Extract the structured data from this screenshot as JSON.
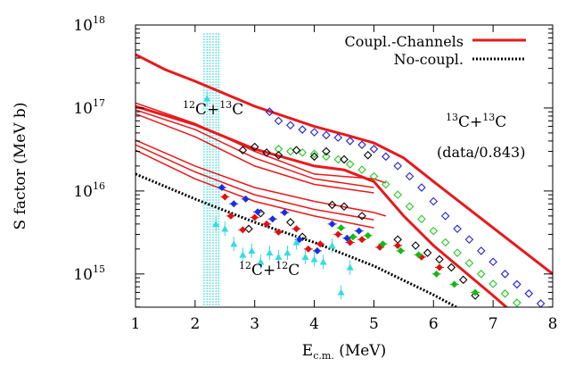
{
  "chart_data": {
    "type": "scatter",
    "title": "",
    "xlabel": {
      "base": "E",
      "sub": "c.m.",
      "unit": " (MeV)"
    },
    "ylabel": "S factor (MeV b)",
    "xlim": [
      1,
      8
    ],
    "ylim_log10": [
      14.6,
      18.0
    ],
    "yscale": "log",
    "xticks": [
      "1",
      "2",
      "3",
      "4",
      "5",
      "6",
      "7",
      "8"
    ],
    "yticks": [
      {
        "exp": 15,
        "base": "10",
        "sup": "15"
      },
      {
        "exp": 16,
        "base": "10",
        "sup": "16"
      },
      {
        "exp": 17,
        "base": "10",
        "sup": "17"
      },
      {
        "exp": 18,
        "base": "10",
        "sup": "18"
      }
    ],
    "legend": [
      {
        "label": "Coupl.-Channels",
        "color": "#e8191c",
        "style": "solid"
      },
      {
        "label": "No-coupl.",
        "color": "#000000",
        "style": "dotted"
      }
    ],
    "annotations": {
      "c12c13": {
        "sup1": "12",
        "mid": "C+",
        "sup2": "13",
        "end": "C"
      },
      "c13c13": {
        "sup1": "13",
        "mid": "C+",
        "sup2": "13",
        "end": "C"
      },
      "scale_note": "(data/0.843)",
      "c12c12": {
        "sup1": "12",
        "mid": "C+",
        "sup2": "12",
        "end": "C"
      }
    },
    "series": [
      {
        "name": "Coupl.-Channels",
        "kind": "line",
        "color": "#e8191c",
        "width": 3,
        "x": [
          1,
          1.5,
          2,
          3,
          4,
          4.5,
          5,
          5.5,
          6,
          7,
          8
        ],
        "y": [
          4.4e+17,
          2.9e+17,
          2.1e+17,
          1.05e+17,
          6e+16,
          4.8e+16,
          3.8e+16,
          2.5e+16,
          1.3e+16,
          3600000000000000.0,
          1000000000000000.0
        ]
      },
      {
        "name": "",
        "kind": "line",
        "color": "#e8191c",
        "width": 3,
        "x": [
          1,
          2,
          3,
          4,
          4.5,
          5,
          5.5,
          6,
          7,
          7.7
        ],
        "y": [
          1.05e+17,
          6.3e+16,
          3.2e+16,
          2e+16,
          1.8e+16,
          1.3e+16,
          5000000000000000.0,
          2200000000000000.0,
          550000000000000.0,
          200000000000000.0
        ]
      },
      {
        "name": "",
        "kind": "line",
        "color": "#e8191c",
        "width": 1.5,
        "x": [
          1,
          2,
          3,
          4,
          5,
          5.2
        ],
        "y": [
          1.15e+17,
          6.5e+16,
          3e+16,
          1.6e+16,
          1.4e+16,
          1.25e+16
        ]
      },
      {
        "name": "",
        "kind": "line",
        "color": "#e8191c",
        "width": 1.5,
        "x": [
          1,
          2,
          3,
          4,
          5
        ],
        "y": [
          9.5e+16,
          5.5e+16,
          2.5e+16,
          1.4e+16,
          1.1e+16
        ]
      },
      {
        "name": "",
        "kind": "line",
        "color": "#e8191c",
        "width": 1.5,
        "x": [
          1,
          2,
          3,
          4,
          5
        ],
        "y": [
          8.5e+16,
          4.5e+16,
          2e+16,
          1.2e+16,
          9500000000000000.0
        ]
      },
      {
        "name": "",
        "kind": "line",
        "color": "#e8191c",
        "width": 1.5,
        "x": [
          1,
          2,
          3,
          4,
          5,
          5.2
        ],
        "y": [
          4.1e+16,
          2e+16,
          1.1e+16,
          7500000000000000.0,
          5500000000000000.0,
          5000000000000000.0
        ]
      },
      {
        "name": "",
        "kind": "line",
        "color": "#e8191c",
        "width": 1.5,
        "x": [
          1,
          2,
          3,
          4,
          5
        ],
        "y": [
          3.6e+16,
          1.7e+16,
          9000000000000000.0,
          6000000000000000.0,
          4500000000000000.0
        ]
      },
      {
        "name": "",
        "kind": "line",
        "color": "#e8191c",
        "width": 1.5,
        "x": [
          1,
          2,
          3,
          4,
          5
        ],
        "y": [
          3.1e+16,
          1.4e+16,
          7500000000000000.0,
          5000000000000000.0,
          3600000000000000.0
        ]
      },
      {
        "name": "No-coupl.",
        "kind": "line",
        "color": "#000000",
        "width": 3,
        "dash": "2 2",
        "x": [
          1,
          2,
          3,
          4,
          5,
          6,
          7,
          7.5
        ],
        "y": [
          1.6e+16,
          8000000000000000.0,
          4200000000000000.0,
          2400000000000000.0,
          1250000000000000.0,
          560000000000000.0,
          230000000000000.0,
          150000000000000.0
        ]
      },
      {
        "name": "",
        "kind": "points",
        "marker": "diamond-open",
        "color": "#2020e0",
        "x": [
          3.25,
          3.4,
          3.6,
          3.8,
          4.0,
          4.2,
          4.4,
          4.6,
          4.8,
          5.0,
          5.2,
          5.4,
          5.6,
          5.8,
          6.0,
          6.2,
          6.4,
          6.6,
          6.8,
          7.0,
          7.2,
          7.4,
          7.6,
          7.8,
          7.95
        ],
        "y": [
          9e+16,
          7e+16,
          6.2e+16,
          5.5e+16,
          5.1e+16,
          4.7e+16,
          4.4e+16,
          4e+16,
          3.6e+16,
          3.2e+16,
          2.6e+16,
          2e+16,
          1.5e+16,
          1.1e+16,
          7500000000000000.0,
          5000000000000000.0,
          3500000000000000.0,
          2600000000000000.0,
          1900000000000000.0,
          1400000000000000.0,
          1000000000000000.0,
          750000000000000.0,
          580000000000000.0,
          440000000000000.0,
          360000000000000.0
        ]
      },
      {
        "name": "",
        "kind": "points",
        "marker": "diamond-open",
        "color": "#22cc22",
        "x": [
          3.4,
          3.6,
          3.8,
          4.0,
          4.2,
          4.4,
          4.6,
          4.8,
          5.0,
          5.2,
          5.4,
          5.6,
          5.8,
          6.0,
          6.2,
          6.4,
          6.6,
          6.8,
          7.0,
          7.2,
          7.4,
          7.6,
          7.8,
          7.95
        ],
        "y": [
          3.2e+16,
          3e+16,
          2.9e+16,
          2.8e+16,
          2.6e+16,
          2.4e+16,
          2.1e+16,
          1.8e+16,
          1.5e+16,
          1.2e+16,
          9000000000000000.0,
          6500000000000000.0,
          4600000000000000.0,
          3300000000000000.0,
          2400000000000000.0,
          1800000000000000.0,
          1350000000000000.0,
          1000000000000000.0,
          760000000000000.0,
          580000000000000.0,
          450000000000000.0,
          350000000000000.0,
          270000000000000.0,
          220000000000000.0
        ]
      },
      {
        "name": "",
        "kind": "points",
        "marker": "diamond-open",
        "color": "#000000",
        "x": [
          2.8,
          3.0,
          3.2,
          3.4,
          3.7,
          4.0,
          4.2,
          4.5,
          4.9,
          4.5,
          4.3,
          3.6,
          3.1,
          2.9,
          3.8,
          4.8,
          5.4,
          5.7,
          6.1,
          6.3,
          6.5,
          6.7,
          5.9
        ],
        "y": [
          3.1e+16,
          3.4e+16,
          2.9e+16,
          2.7e+16,
          3.1e+16,
          2.6e+16,
          3e+16,
          2.4e+16,
          2.7e+16,
          6500000000000000.0,
          6800000000000000.0,
          4200000000000000.0,
          5400000000000000.0,
          3500000000000000.0,
          2800000000000000.0,
          5000000000000000.0,
          2600000000000000.0,
          2200000000000000.0,
          1500000000000000.0,
          1200000000000000.0,
          850000000000000.0,
          550000000000000.0,
          1800000000000000.0
        ]
      },
      {
        "name": "",
        "kind": "points",
        "marker": "diamond-filled",
        "color": "#e01010",
        "x": [
          2.5,
          2.6,
          2.8,
          3.0,
          3.2,
          3.4,
          3.7,
          3.9,
          4.1,
          4.4,
          4.6,
          4.8,
          5.1,
          5.4,
          5.8,
          6.1
        ],
        "y": [
          8500000000000000.0,
          5000000000000000.0,
          3400000000000000.0,
          4800000000000000.0,
          4000000000000000.0,
          3200000000000000.0,
          3500000000000000.0,
          2000000000000000.0,
          2300000000000000.0,
          3000000000000000.0,
          2400000000000000.0,
          2600000000000000.0,
          2100000000000000.0,
          2200000000000000.0,
          1600000000000000.0,
          1200000000000000.0
        ]
      },
      {
        "name": "",
        "kind": "points",
        "marker": "diamond-filled",
        "color": "#1a2ee0",
        "x": [
          2.45,
          2.65,
          2.85,
          3.05,
          3.3,
          3.5,
          3.75,
          4.05,
          4.3,
          4.55,
          4.75
        ],
        "y": [
          1.1e+16,
          7000000000000000.0,
          8000000000000000.0,
          5600000000000000.0,
          4600000000000000.0,
          5500000000000000.0,
          2600000000000000.0,
          1900000000000000.0,
          4000000000000000.0,
          2700000000000000.0,
          3300000000000000.0
        ]
      },
      {
        "name": "",
        "kind": "points",
        "marker": "diamond-filled",
        "color": "#18b818",
        "x": [
          4.45,
          4.65,
          4.9,
          5.15,
          5.45,
          5.75,
          6.05,
          6.35,
          6.7
        ],
        "y": [
          3600000000000000.0,
          2800000000000000.0,
          2900000000000000.0,
          2300000000000000.0,
          1900000000000000.0,
          1700000000000000.0,
          1000000000000000.0,
          750000000000000.0,
          600000000000000.0
        ]
      },
      {
        "name": "",
        "kind": "points",
        "marker": "triangle-filled",
        "color": "#33dde0",
        "x": [
          2.2,
          2.35,
          2.5,
          2.65,
          2.8,
          2.95,
          3.1,
          3.25,
          3.4,
          3.55,
          3.7,
          3.85,
          4.0,
          4.15,
          4.3,
          4.45,
          4.6
        ],
        "y": [
          1.3e+17,
          4000000000000000.0,
          3500000000000000.0,
          2300000000000000.0,
          1700000000000000.0,
          1900000000000000.0,
          1400000000000000.0,
          1800000000000000.0,
          1600000000000000.0,
          1800000000000000.0,
          2400000000000000.0,
          1600000000000000.0,
          1500000000000000.0,
          1400000000000000.0,
          2200000000000000.0,
          600000000000000.0,
          1200000000000000.0
        ]
      }
    ]
  }
}
